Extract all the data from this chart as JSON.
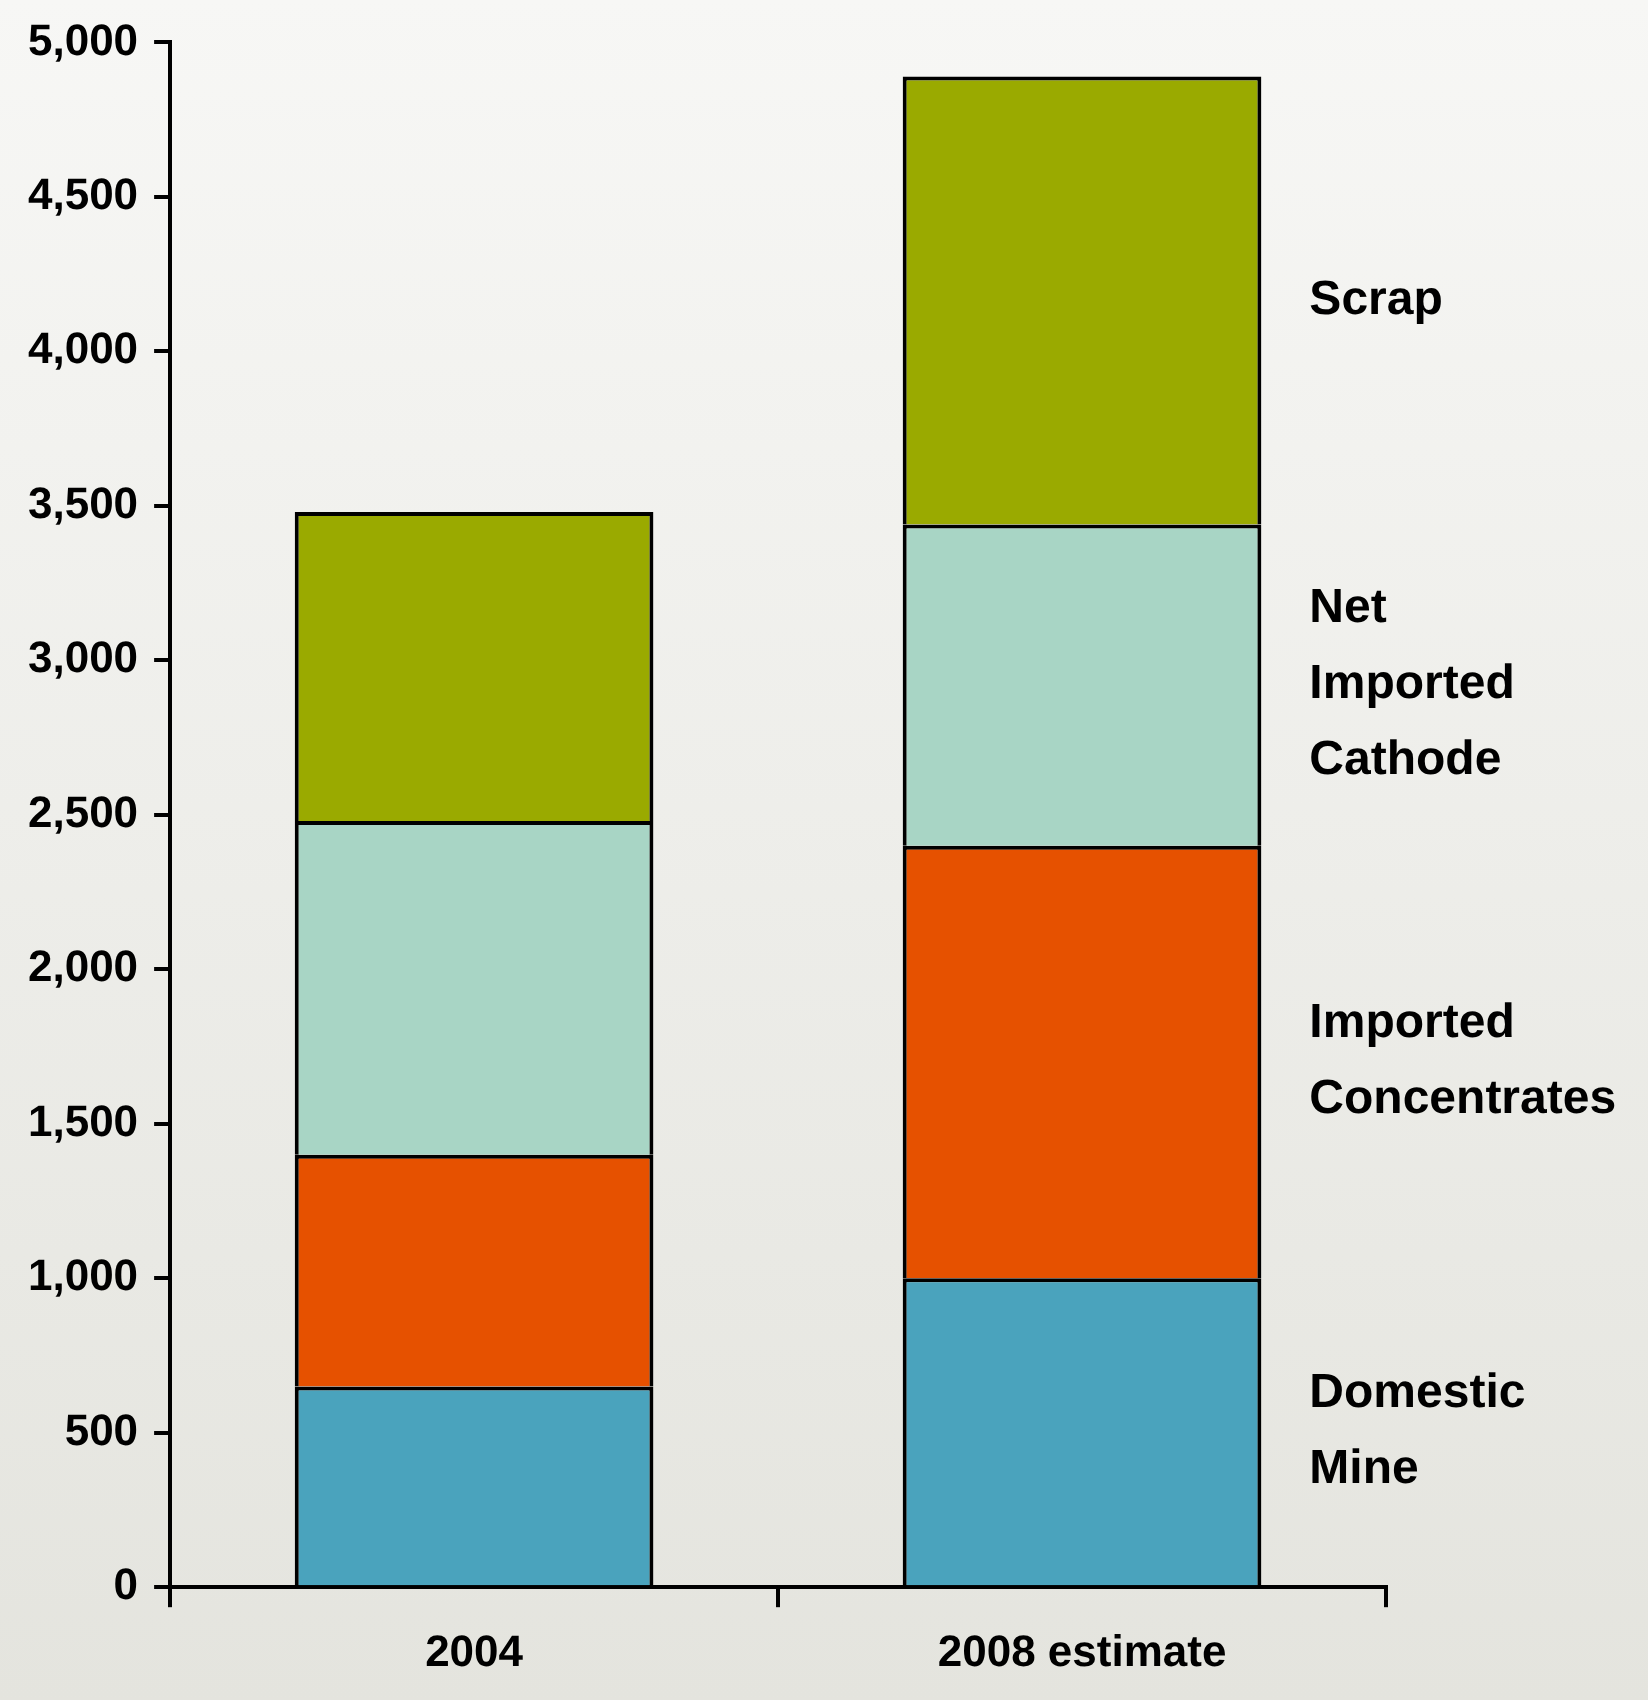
{
  "chart_data": {
    "type": "bar",
    "stacked": true,
    "categories": [
      "2004",
      "2008 estimate"
    ],
    "series": [
      {
        "name": "Domestic Mine",
        "color": "#4aa3bd",
        "values": [
          650,
          1000
        ]
      },
      {
        "name": "Imported Concentrates",
        "color": "#e65100",
        "values": [
          750,
          1400
        ]
      },
      {
        "name": "Net Imported Cathode",
        "color": "#a8d5c5",
        "values": [
          1080,
          1040
        ]
      },
      {
        "name": "Scrap",
        "color": "#9aaa00",
        "values": [
          1000,
          1450
        ]
      }
    ],
    "ylim": [
      0,
      5000
    ],
    "yticks": [
      0,
      500,
      {
        "value": 1000,
        "label": "1,000"
      },
      {
        "value": 1500,
        "label": "1,500"
      },
      {
        "value": 2000,
        "label": "2,000"
      },
      {
        "value": 2500,
        "label": "2,500"
      },
      {
        "value": 3000,
        "label": "3,000"
      },
      {
        "value": 3500,
        "label": "3,500"
      },
      {
        "value": 4000,
        "label": "4,000"
      },
      {
        "value": 4500,
        "label": "4,500"
      },
      {
        "value": 5000,
        "label": "5,000"
      }
    ],
    "grid": false,
    "legend": false
  }
}
